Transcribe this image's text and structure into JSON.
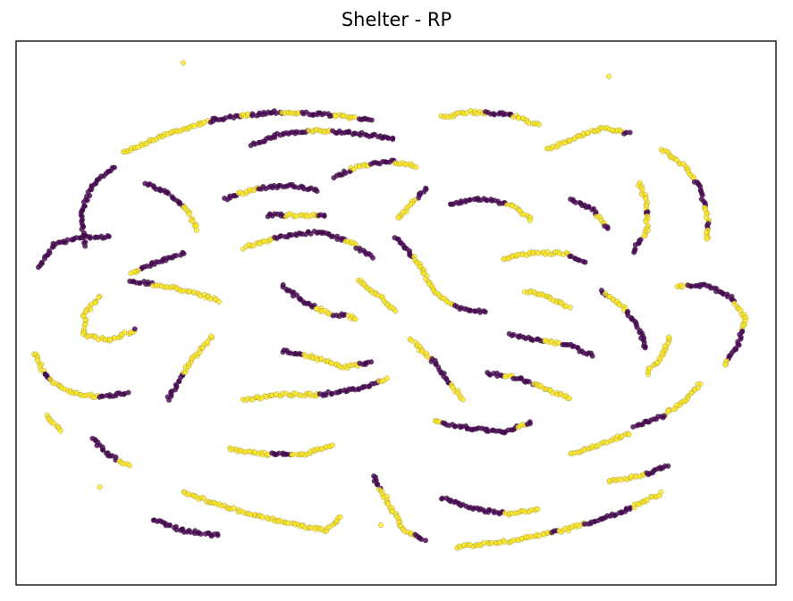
{
  "chart_data": {
    "type": "scatter",
    "title": "Shelter - RP",
    "xlabel": "",
    "ylabel": "",
    "axes_ticks": "none",
    "grid": false,
    "legend": "none",
    "colors": {
      "class_0": "#440154",
      "class_1": "#fde725",
      "marker_edge": "#5a5a3a",
      "axes": "#000000"
    },
    "marker_alpha": 0.8,
    "xlim": [
      -1.0,
      1.0
    ],
    "ylim": [
      -1.0,
      1.0
    ],
    "strands": [
      [
        [
          -0.72,
          0.59
        ],
        [
          -0.6,
          0.66
        ],
        [
          -0.48,
          0.71
        ],
        [
          -0.32,
          0.74
        ],
        [
          -0.18,
          0.73
        ],
        [
          -0.06,
          0.71
        ]
      ],
      [
        [
          -0.82,
          0.25
        ],
        [
          -0.83,
          0.36
        ],
        [
          -0.8,
          0.47
        ],
        [
          -0.74,
          0.54
        ]
      ],
      [
        [
          -0.66,
          0.48
        ],
        [
          -0.6,
          0.44
        ],
        [
          -0.55,
          0.38
        ],
        [
          -0.52,
          0.3
        ]
      ],
      [
        [
          -0.38,
          0.62
        ],
        [
          -0.3,
          0.66
        ],
        [
          -0.2,
          0.67
        ],
        [
          -0.1,
          0.66
        ],
        [
          0.0,
          0.64
        ]
      ],
      [
        [
          0.12,
          0.72
        ],
        [
          0.2,
          0.74
        ],
        [
          0.3,
          0.73
        ],
        [
          0.38,
          0.69
        ]
      ],
      [
        [
          0.4,
          0.6
        ],
        [
          0.46,
          0.64
        ],
        [
          0.54,
          0.68
        ],
        [
          0.62,
          0.66
        ]
      ],
      [
        [
          0.7,
          0.6
        ],
        [
          0.76,
          0.54
        ],
        [
          0.8,
          0.46
        ],
        [
          0.82,
          0.36
        ],
        [
          0.82,
          0.26
        ]
      ],
      [
        [
          0.64,
          0.48
        ],
        [
          0.66,
          0.4
        ],
        [
          0.66,
          0.3
        ],
        [
          0.62,
          0.22
        ]
      ],
      [
        [
          -0.94,
          0.17
        ],
        [
          -0.9,
          0.25
        ],
        [
          -0.83,
          0.28
        ],
        [
          -0.75,
          0.28
        ]
      ],
      [
        [
          -0.95,
          -0.15
        ],
        [
          -0.92,
          -0.24
        ],
        [
          -0.86,
          -0.29
        ],
        [
          -0.78,
          -0.31
        ],
        [
          -0.7,
          -0.29
        ]
      ],
      [
        [
          -0.7,
          0.12
        ],
        [
          -0.62,
          0.1
        ],
        [
          -0.54,
          0.08
        ],
        [
          -0.46,
          0.04
        ]
      ],
      [
        [
          -0.78,
          0.06
        ],
        [
          -0.82,
          0.0
        ],
        [
          -0.82,
          -0.08
        ],
        [
          -0.76,
          -0.1
        ],
        [
          -0.68,
          -0.06
        ]
      ],
      [
        [
          -0.4,
          0.24
        ],
        [
          -0.3,
          0.28
        ],
        [
          -0.2,
          0.3
        ],
        [
          -0.12,
          0.26
        ],
        [
          -0.06,
          0.2
        ]
      ],
      [
        [
          -0.45,
          0.42
        ],
        [
          -0.36,
          0.46
        ],
        [
          -0.28,
          0.47
        ],
        [
          -0.2,
          0.45
        ]
      ],
      [
        [
          -0.3,
          0.1
        ],
        [
          -0.24,
          0.04
        ],
        [
          -0.18,
          0.0
        ],
        [
          -0.1,
          -0.02
        ]
      ],
      [
        [
          0.0,
          0.28
        ],
        [
          0.06,
          0.18
        ],
        [
          0.1,
          0.08
        ],
        [
          0.16,
          0.02
        ],
        [
          0.24,
          0.0
        ]
      ],
      [
        [
          0.14,
          0.4
        ],
        [
          0.22,
          0.42
        ],
        [
          0.3,
          0.4
        ],
        [
          0.36,
          0.34
        ]
      ],
      [
        [
          0.28,
          0.2
        ],
        [
          0.36,
          0.22
        ],
        [
          0.44,
          0.22
        ],
        [
          0.5,
          0.18
        ]
      ],
      [
        [
          0.54,
          0.08
        ],
        [
          0.6,
          0.02
        ],
        [
          0.64,
          -0.06
        ],
        [
          0.66,
          -0.14
        ]
      ],
      [
        [
          0.74,
          0.1
        ],
        [
          0.82,
          0.1
        ],
        [
          0.88,
          0.06
        ],
        [
          0.92,
          -0.02
        ],
        [
          0.9,
          -0.12
        ],
        [
          0.86,
          -0.2
        ]
      ],
      [
        [
          0.8,
          -0.26
        ],
        [
          0.76,
          -0.32
        ],
        [
          0.7,
          -0.38
        ],
        [
          0.62,
          -0.42
        ]
      ],
      [
        [
          0.46,
          -0.52
        ],
        [
          0.54,
          -0.48
        ],
        [
          0.62,
          -0.44
        ]
      ],
      [
        [
          0.16,
          -0.86
        ],
        [
          0.3,
          -0.84
        ],
        [
          0.44,
          -0.8
        ],
        [
          0.58,
          -0.74
        ],
        [
          0.7,
          -0.66
        ]
      ],
      [
        [
          0.12,
          -0.68
        ],
        [
          0.2,
          -0.72
        ],
        [
          0.3,
          -0.74
        ],
        [
          0.38,
          -0.72
        ]
      ],
      [
        [
          -0.06,
          -0.6
        ],
        [
          -0.02,
          -0.7
        ],
        [
          0.02,
          -0.8
        ],
        [
          0.08,
          -0.84
        ]
      ],
      [
        [
          -0.8,
          -0.46
        ],
        [
          -0.76,
          -0.52
        ],
        [
          -0.7,
          -0.56
        ]
      ],
      [
        [
          -0.56,
          -0.66
        ],
        [
          -0.48,
          -0.7
        ],
        [
          -0.38,
          -0.74
        ],
        [
          -0.26,
          -0.78
        ],
        [
          -0.18,
          -0.8
        ],
        [
          -0.14,
          -0.74
        ]
      ],
      [
        [
          -0.44,
          -0.5
        ],
        [
          -0.34,
          -0.52
        ],
        [
          -0.24,
          -0.52
        ],
        [
          -0.16,
          -0.48
        ]
      ],
      [
        [
          -0.4,
          -0.32
        ],
        [
          -0.3,
          -0.3
        ],
        [
          -0.2,
          -0.3
        ],
        [
          -0.1,
          -0.28
        ],
        [
          -0.02,
          -0.24
        ]
      ],
      [
        [
          -0.6,
          -0.32
        ],
        [
          -0.56,
          -0.22
        ],
        [
          -0.52,
          -0.14
        ],
        [
          -0.48,
          -0.08
        ]
      ],
      [
        [
          -0.3,
          -0.14
        ],
        [
          -0.22,
          -0.16
        ],
        [
          -0.14,
          -0.2
        ],
        [
          -0.06,
          -0.18
        ]
      ],
      [
        [
          0.04,
          -0.1
        ],
        [
          0.1,
          -0.18
        ],
        [
          0.14,
          -0.26
        ],
        [
          0.18,
          -0.32
        ]
      ],
      [
        [
          0.1,
          -0.4
        ],
        [
          0.18,
          -0.42
        ],
        [
          0.28,
          -0.44
        ],
        [
          0.36,
          -0.4
        ]
      ],
      [
        [
          0.24,
          -0.22
        ],
        [
          0.32,
          -0.24
        ],
        [
          0.4,
          -0.28
        ],
        [
          0.46,
          -0.32
        ]
      ],
      [
        [
          0.3,
          -0.08
        ],
        [
          0.38,
          -0.1
        ],
        [
          0.46,
          -0.12
        ],
        [
          0.52,
          -0.16
        ]
      ],
      [
        [
          -0.16,
          0.5
        ],
        [
          -0.1,
          0.54
        ],
        [
          -0.02,
          0.56
        ],
        [
          0.06,
          0.54
        ]
      ],
      [
        [
          0.08,
          0.46
        ],
        [
          0.04,
          0.4
        ],
        [
          0.0,
          0.34
        ]
      ],
      [
        [
          -0.56,
          0.22
        ],
        [
          -0.64,
          0.18
        ],
        [
          -0.7,
          0.14
        ]
      ],
      [
        [
          -0.92,
          -0.38
        ],
        [
          -0.88,
          -0.44
        ]
      ],
      [
        [
          -0.34,
          0.36
        ],
        [
          -0.26,
          0.36
        ],
        [
          -0.18,
          0.36
        ]
      ],
      [
        [
          0.46,
          0.42
        ],
        [
          0.52,
          0.38
        ],
        [
          0.56,
          0.3
        ]
      ],
      [
        [
          0.66,
          -0.22
        ],
        [
          0.7,
          -0.16
        ],
        [
          0.72,
          -0.08
        ]
      ],
      [
        [
          0.34,
          0.08
        ],
        [
          0.4,
          0.06
        ],
        [
          0.46,
          0.02
        ]
      ],
      [
        [
          -0.1,
          0.12
        ],
        [
          -0.04,
          0.06
        ],
        [
          0.0,
          0.0
        ]
      ],
      [
        [
          0.56,
          -0.62
        ],
        [
          0.64,
          -0.6
        ],
        [
          0.72,
          -0.56
        ]
      ],
      [
        [
          -0.64,
          -0.76
        ],
        [
          -0.56,
          -0.8
        ],
        [
          -0.46,
          -0.82
        ]
      ]
    ],
    "isolated_points": [
      [
        -0.56,
        0.92
      ],
      [
        0.56,
        0.87
      ],
      [
        -0.78,
        -0.64
      ],
      [
        -0.04,
        -0.78
      ]
    ]
  }
}
